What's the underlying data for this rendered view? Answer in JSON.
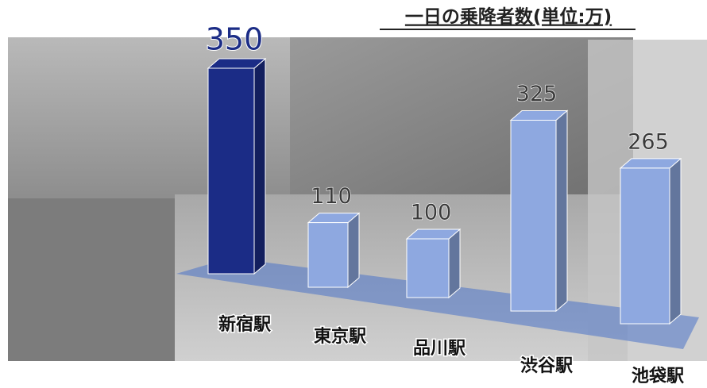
{
  "chart_data": {
    "type": "bar3d",
    "title": "一日の乗降者数(単位:万)",
    "categories": [
      "新宿駅",
      "東京駅",
      "品川駅",
      "渋谷駅",
      "池袋駅"
    ],
    "values": [
      350,
      110,
      100,
      325,
      265
    ],
    "colors": [
      "#1b2c86",
      "#8ea8e0",
      "#8ea8e0",
      "#8ea8e0",
      "#8ea8e0"
    ]
  }
}
